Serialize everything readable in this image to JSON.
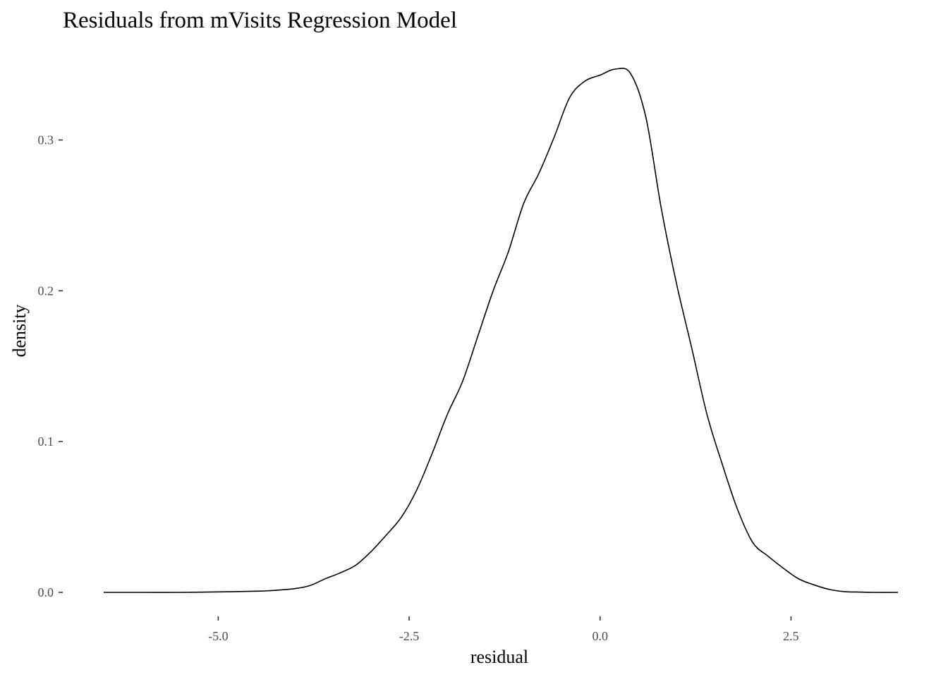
{
  "chart_data": {
    "type": "line",
    "title": "Residuals from mVisits Regression Model",
    "xlabel": "residual",
    "ylabel": "density",
    "xlim": [
      -6.5,
      3.9
    ],
    "ylim": [
      0,
      0.347
    ],
    "x_ticks": [
      {
        "value": -5.0,
        "label": "-5.0"
      },
      {
        "value": -2.5,
        "label": "-2.5"
      },
      {
        "value": 0.0,
        "label": "0.0"
      },
      {
        "value": 2.5,
        "label": "2.5"
      }
    ],
    "y_ticks": [
      {
        "value": 0.0,
        "label": "0.0"
      },
      {
        "value": 0.1,
        "label": "0.1"
      },
      {
        "value": 0.2,
        "label": "0.2"
      },
      {
        "value": 0.3,
        "label": "0.3"
      }
    ],
    "grid": false,
    "legend": "none",
    "series": [
      {
        "color": "#000000",
        "x": [
          -6.5,
          -6.0,
          -5.5,
          -5.0,
          -4.5,
          -4.3,
          -4.0,
          -3.8,
          -3.6,
          -3.4,
          -3.2,
          -3.0,
          -2.8,
          -2.6,
          -2.4,
          -2.2,
          -2.0,
          -1.8,
          -1.6,
          -1.4,
          -1.2,
          -1.0,
          -0.8,
          -0.6,
          -0.4,
          -0.2,
          0.0,
          0.2,
          0.4,
          0.6,
          0.8,
          1.0,
          1.2,
          1.4,
          1.6,
          1.8,
          2.0,
          2.2,
          2.4,
          2.6,
          2.8,
          3.0,
          3.2,
          3.4,
          3.6,
          3.9
        ],
        "y": [
          0.0,
          0.0,
          0.0,
          0.0003,
          0.0008,
          0.0012,
          0.0025,
          0.0045,
          0.009,
          0.013,
          0.018,
          0.027,
          0.038,
          0.05,
          0.068,
          0.092,
          0.118,
          0.14,
          0.17,
          0.2,
          0.226,
          0.258,
          0.278,
          0.302,
          0.328,
          0.339,
          0.343,
          0.347,
          0.344,
          0.315,
          0.255,
          0.205,
          0.162,
          0.118,
          0.085,
          0.055,
          0.033,
          0.024,
          0.016,
          0.009,
          0.005,
          0.002,
          0.0005,
          0.0002,
          0.0,
          0.0
        ]
      }
    ]
  }
}
